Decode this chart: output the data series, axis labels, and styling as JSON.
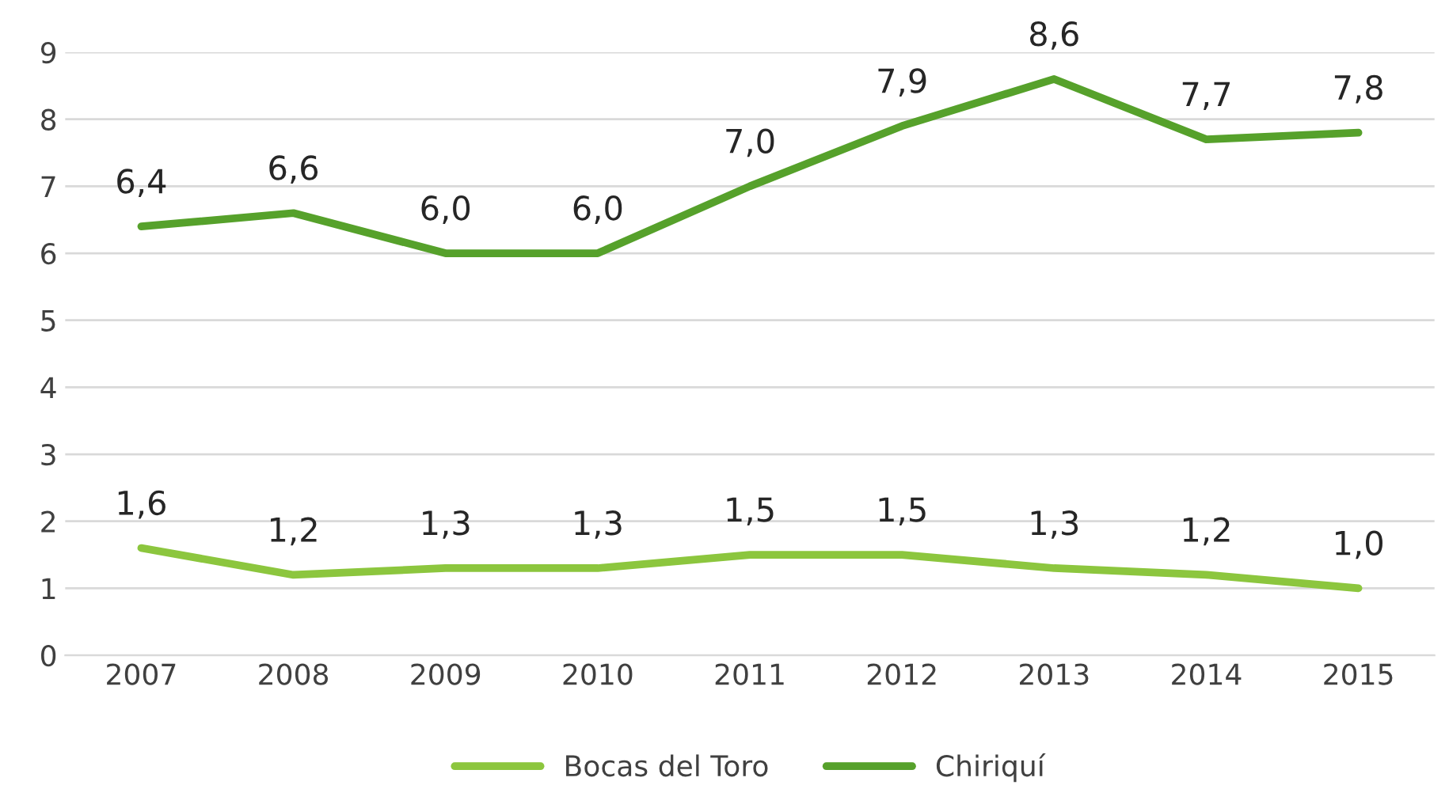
{
  "chart_data": {
    "type": "line",
    "categories": [
      "2007",
      "2008",
      "2009",
      "2010",
      "2011",
      "2012",
      "2013",
      "2014",
      "2015"
    ],
    "series": [
      {
        "name": "Bocas del Toro",
        "color": "#8cc63e",
        "values": [
          1.6,
          1.2,
          1.3,
          1.3,
          1.5,
          1.5,
          1.3,
          1.2,
          1.0
        ],
        "value_labels": [
          "1,6",
          "1,2",
          "1,3",
          "1,3",
          "1,5",
          "1,5",
          "1,3",
          "1,2",
          "1,0"
        ]
      },
      {
        "name": "Chiriquí",
        "color": "#56a12b",
        "values": [
          6.4,
          6.6,
          6.0,
          6.0,
          7.0,
          7.9,
          8.6,
          7.7,
          7.8
        ],
        "value_labels": [
          "6,4",
          "6,6",
          "6,0",
          "6,0",
          "7,0",
          "7,9",
          "8,6",
          "7,7",
          "7,8"
        ]
      }
    ],
    "ylim": [
      0,
      9
    ],
    "yticks": [
      0,
      1,
      2,
      3,
      4,
      5,
      6,
      7,
      8,
      9
    ],
    "grid": "y",
    "legend": "bottom",
    "marker": "none",
    "line_style": "solid"
  }
}
